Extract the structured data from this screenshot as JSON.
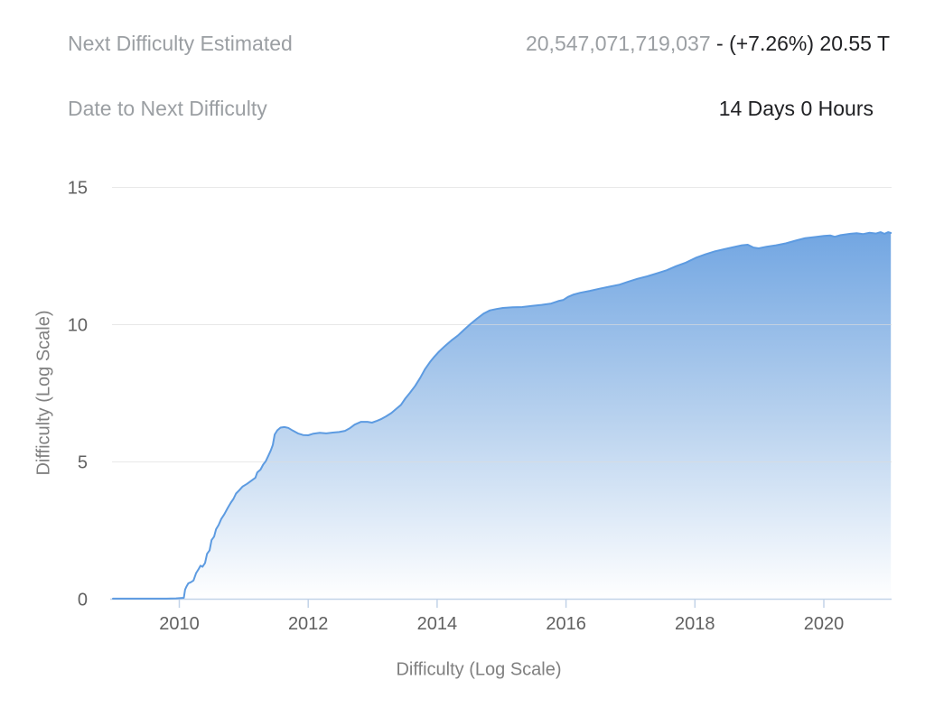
{
  "stats": {
    "rows": [
      {
        "label": "Next Difficulty Estimated",
        "value_muted": "20,547,071,719,037",
        "value_rest": " - (+7.26%) 20.55 T"
      },
      {
        "label": "Date to Next Difficulty",
        "value_rest": "14 Days 0 Hours"
      }
    ]
  },
  "chart_data": {
    "type": "area",
    "title": "",
    "xlabel": "Difficulty (Log Scale)",
    "ylabel": "Difficulty (Log Scale)",
    "x_ticks": [
      2010,
      2012,
      2014,
      2016,
      2018,
      2020
    ],
    "y_ticks": [
      0,
      5,
      10,
      15
    ],
    "xlim": [
      2008.97,
      2021.05
    ],
    "ylim": [
      0,
      15
    ],
    "grid": "horizontal",
    "legend": "none",
    "series": [
      {
        "name": "bitcoin-difficulty-log10",
        "points": [
          [
            2008.97,
            0.02
          ],
          [
            2009.2,
            0.02
          ],
          [
            2009.4,
            0.02
          ],
          [
            2009.6,
            0.02
          ],
          [
            2009.8,
            0.02
          ],
          [
            2009.95,
            0.03
          ],
          [
            2010.07,
            0.05
          ],
          [
            2010.09,
            0.35
          ],
          [
            2010.11,
            0.45
          ],
          [
            2010.14,
            0.58
          ],
          [
            2010.18,
            0.62
          ],
          [
            2010.22,
            0.68
          ],
          [
            2010.26,
            0.95
          ],
          [
            2010.3,
            1.1
          ],
          [
            2010.33,
            1.22
          ],
          [
            2010.36,
            1.18
          ],
          [
            2010.4,
            1.32
          ],
          [
            2010.43,
            1.65
          ],
          [
            2010.47,
            1.78
          ],
          [
            2010.5,
            2.15
          ],
          [
            2010.54,
            2.28
          ],
          [
            2010.57,
            2.55
          ],
          [
            2010.61,
            2.7
          ],
          [
            2010.65,
            2.92
          ],
          [
            2010.7,
            3.1
          ],
          [
            2010.75,
            3.32
          ],
          [
            2010.8,
            3.52
          ],
          [
            2010.84,
            3.65
          ],
          [
            2010.88,
            3.85
          ],
          [
            2010.93,
            3.97
          ],
          [
            2010.98,
            4.1
          ],
          [
            2011.05,
            4.2
          ],
          [
            2011.12,
            4.32
          ],
          [
            2011.18,
            4.42
          ],
          [
            2011.21,
            4.62
          ],
          [
            2011.26,
            4.72
          ],
          [
            2011.3,
            4.9
          ],
          [
            2011.34,
            5.02
          ],
          [
            2011.38,
            5.22
          ],
          [
            2011.42,
            5.42
          ],
          [
            2011.45,
            5.62
          ],
          [
            2011.48,
            6.0
          ],
          [
            2011.52,
            6.15
          ],
          [
            2011.57,
            6.25
          ],
          [
            2011.63,
            6.27
          ],
          [
            2011.69,
            6.24
          ],
          [
            2011.76,
            6.14
          ],
          [
            2011.84,
            6.04
          ],
          [
            2011.92,
            5.98
          ],
          [
            2012.0,
            5.97
          ],
          [
            2012.08,
            6.03
          ],
          [
            2012.18,
            6.06
          ],
          [
            2012.28,
            6.04
          ],
          [
            2012.38,
            6.07
          ],
          [
            2012.48,
            6.09
          ],
          [
            2012.57,
            6.13
          ],
          [
            2012.64,
            6.22
          ],
          [
            2012.72,
            6.36
          ],
          [
            2012.82,
            6.46
          ],
          [
            2012.92,
            6.46
          ],
          [
            2012.99,
            6.43
          ],
          [
            2013.07,
            6.5
          ],
          [
            2013.14,
            6.57
          ],
          [
            2013.21,
            6.66
          ],
          [
            2013.29,
            6.78
          ],
          [
            2013.36,
            6.92
          ],
          [
            2013.44,
            7.08
          ],
          [
            2013.51,
            7.32
          ],
          [
            2013.58,
            7.52
          ],
          [
            2013.66,
            7.77
          ],
          [
            2013.74,
            8.07
          ],
          [
            2013.81,
            8.37
          ],
          [
            2013.89,
            8.64
          ],
          [
            2013.96,
            8.84
          ],
          [
            2014.03,
            9.02
          ],
          [
            2014.12,
            9.22
          ],
          [
            2014.22,
            9.42
          ],
          [
            2014.32,
            9.6
          ],
          [
            2014.42,
            9.82
          ],
          [
            2014.52,
            10.03
          ],
          [
            2014.62,
            10.22
          ],
          [
            2014.72,
            10.4
          ],
          [
            2014.82,
            10.52
          ],
          [
            2014.92,
            10.57
          ],
          [
            2015.02,
            10.61
          ],
          [
            2015.17,
            10.63
          ],
          [
            2015.32,
            10.64
          ],
          [
            2015.47,
            10.68
          ],
          [
            2015.62,
            10.72
          ],
          [
            2015.77,
            10.77
          ],
          [
            2015.88,
            10.86
          ],
          [
            2015.96,
            10.9
          ],
          [
            2016.03,
            11.01
          ],
          [
            2016.12,
            11.1
          ],
          [
            2016.22,
            11.16
          ],
          [
            2016.37,
            11.23
          ],
          [
            2016.52,
            11.31
          ],
          [
            2016.67,
            11.38
          ],
          [
            2016.82,
            11.45
          ],
          [
            2016.96,
            11.56
          ],
          [
            2017.11,
            11.67
          ],
          [
            2017.26,
            11.76
          ],
          [
            2017.41,
            11.87
          ],
          [
            2017.56,
            11.98
          ],
          [
            2017.71,
            12.13
          ],
          [
            2017.86,
            12.26
          ],
          [
            2018.01,
            12.43
          ],
          [
            2018.16,
            12.56
          ],
          [
            2018.31,
            12.67
          ],
          [
            2018.46,
            12.75
          ],
          [
            2018.61,
            12.83
          ],
          [
            2018.73,
            12.89
          ],
          [
            2018.82,
            12.91
          ],
          [
            2018.91,
            12.81
          ],
          [
            2018.99,
            12.78
          ],
          [
            2019.11,
            12.84
          ],
          [
            2019.26,
            12.89
          ],
          [
            2019.41,
            12.96
          ],
          [
            2019.56,
            13.06
          ],
          [
            2019.71,
            13.15
          ],
          [
            2019.86,
            13.19
          ],
          [
            2020.0,
            13.23
          ],
          [
            2020.1,
            13.25
          ],
          [
            2020.17,
            13.2
          ],
          [
            2020.26,
            13.26
          ],
          [
            2020.41,
            13.31
          ],
          [
            2020.51,
            13.33
          ],
          [
            2020.61,
            13.3
          ],
          [
            2020.71,
            13.35
          ],
          [
            2020.81,
            13.32
          ],
          [
            2020.88,
            13.37
          ],
          [
            2020.94,
            13.31
          ],
          [
            2021.0,
            13.37
          ],
          [
            2021.04,
            13.34
          ]
        ]
      }
    ],
    "colors": {
      "line": "#5d9be1",
      "area_top": "#72a6e2",
      "area_mid": "#b7d1ee",
      "area_bottom": "#ffffff",
      "grid": "#dcdcdc",
      "axis": "#c2d3e8",
      "tick_label": "#616161",
      "axis_title": "#808080"
    }
  }
}
